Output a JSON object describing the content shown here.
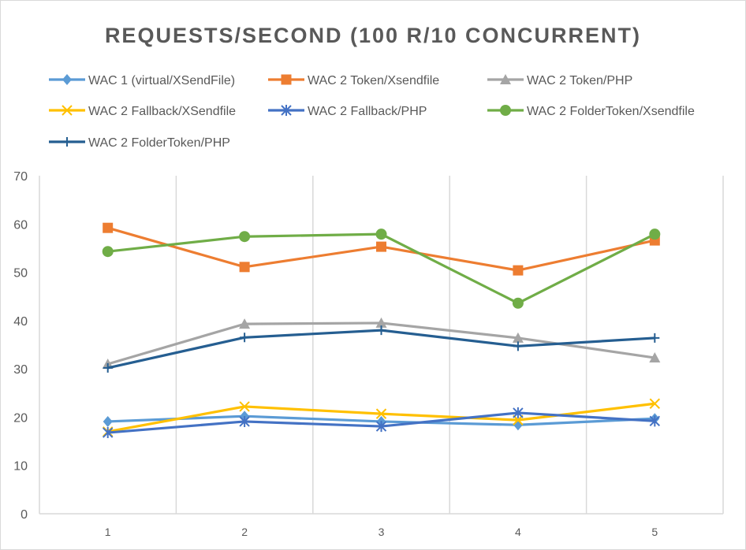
{
  "chart_data": {
    "type": "line",
    "title": "REQUESTS/SECOND (100 R/10 CONCURRENT)",
    "xlabel": "",
    "ylabel": "",
    "categories": [
      "1",
      "2",
      "3",
      "4",
      "5"
    ],
    "ylim": [
      0,
      70
    ],
    "yticks": [
      0,
      10,
      20,
      30,
      40,
      50,
      60,
      70
    ],
    "grid": "vertical",
    "legend_position": "top",
    "series": [
      {
        "name": "WAC 1 (virtual/XSendFile)",
        "color": "#5B9BD5",
        "marker": "diamond",
        "values": [
          19.1,
          20.2,
          19.1,
          18.4,
          19.7
        ]
      },
      {
        "name": "WAC 2 Token/Xsendfile",
        "color": "#ED7D31",
        "marker": "square",
        "values": [
          59.2,
          51.1,
          55.3,
          50.4,
          56.6
        ]
      },
      {
        "name": "WAC 2 Token/PHP",
        "color": "#A5A5A5",
        "marker": "triangle",
        "values": [
          31.0,
          39.3,
          39.5,
          36.4,
          32.3
        ]
      },
      {
        "name": "WAC 2 Fallback/XSendfile",
        "color": "#FFC000",
        "marker": "x",
        "values": [
          17.0,
          22.2,
          20.7,
          19.4,
          22.8
        ]
      },
      {
        "name": "WAC 2 Fallback/PHP",
        "color": "#4472C4",
        "marker": "star",
        "values": [
          16.8,
          19.1,
          18.1,
          20.9,
          19.2
        ]
      },
      {
        "name": "WAC 2 FolderToken/Xsendfile",
        "color": "#70AD47",
        "marker": "circle",
        "values": [
          54.3,
          57.4,
          57.9,
          43.6,
          57.9
        ]
      },
      {
        "name": "WAC 2 FolderToken/PHP",
        "color": "#255E91",
        "marker": "plus",
        "values": [
          30.2,
          36.5,
          38.0,
          34.7,
          36.4
        ]
      }
    ]
  }
}
